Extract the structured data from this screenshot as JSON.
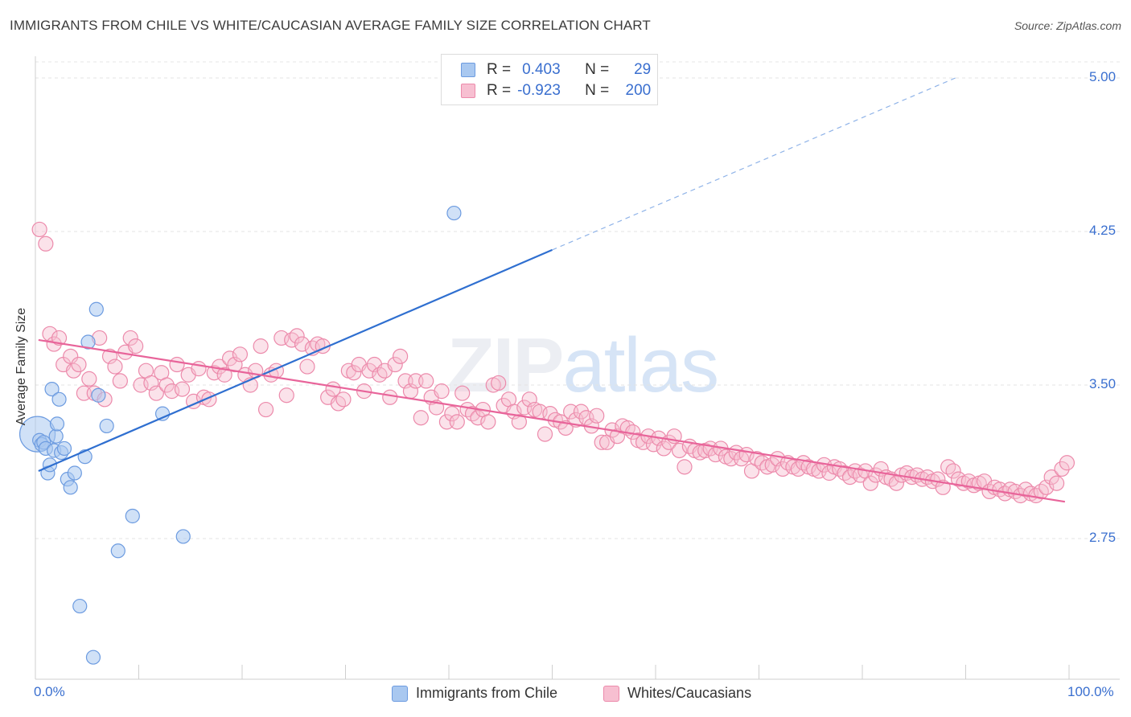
{
  "title": "IMMIGRANTS FROM CHILE VS WHITE/CAUCASIAN AVERAGE FAMILY SIZE CORRELATION CHART",
  "source": "Source: ZipAtlas.com",
  "watermark": {
    "zip": "ZIP",
    "atlas": "atlas"
  },
  "legend_top": {
    "rows": [
      {
        "r_label": "R =",
        "r_value": "0.403",
        "n_label": "N =",
        "n_value": "29",
        "color": "#a9c8f0",
        "border": "#6c9be0"
      },
      {
        "r_label": "R =",
        "r_value": "-0.923",
        "n_label": "N =",
        "n_value": "200",
        "color": "#f7bfd1",
        "border": "#ec8aab"
      }
    ]
  },
  "legend_bottom": [
    {
      "label": "Immigrants from Chile",
      "color": "#a9c8f0",
      "border": "#6c9be0"
    },
    {
      "label": "Whites/Caucasians",
      "color": "#f7bfd1",
      "border": "#ec8aab"
    }
  ],
  "chart_data": {
    "type": "scatter",
    "title": "IMMIGRANTS FROM CHILE VS WHITE/CAUCASIAN AVERAGE FAMILY SIZE CORRELATION CHART",
    "xlabel": "",
    "ylabel": "Average Family Size",
    "xlim": [
      0,
      100
    ],
    "ylim": [
      2.0,
      5.1
    ],
    "x_tick_labels": [
      "0.0%",
      "100.0%"
    ],
    "y_ticks": [
      2.75,
      3.5,
      4.25,
      5.0
    ],
    "y_tick_labels": [
      "2.75",
      "3.50",
      "4.25",
      "5.00"
    ],
    "grid": true,
    "series": [
      {
        "name": "Immigrants from Chile",
        "color": "#a9c8f0",
        "stroke": "#6c9be0",
        "trend_color": "#2f6fd0",
        "trend": {
          "x0": 0.3,
          "y0": 3.08,
          "x1": 50,
          "y1": 4.16,
          "dash_to_x": 89,
          "dash_to_y": 5.0
        },
        "points": [
          [
            0.2,
            3.26
          ],
          [
            0.4,
            3.23
          ],
          [
            0.6,
            3.21
          ],
          [
            0.8,
            3.22
          ],
          [
            1.0,
            3.19
          ],
          [
            1.2,
            3.07
          ],
          [
            1.4,
            3.11
          ],
          [
            1.6,
            3.48
          ],
          [
            1.8,
            3.18
          ],
          [
            2.0,
            3.25
          ],
          [
            2.1,
            3.31
          ],
          [
            2.3,
            3.43
          ],
          [
            2.5,
            3.17
          ],
          [
            2.8,
            3.19
          ],
          [
            3.1,
            3.04
          ],
          [
            3.4,
            3.0
          ],
          [
            3.8,
            3.07
          ],
          [
            4.3,
            2.42
          ],
          [
            4.8,
            3.15
          ],
          [
            5.1,
            3.71
          ],
          [
            5.6,
            2.17
          ],
          [
            5.9,
            3.87
          ],
          [
            6.1,
            3.45
          ],
          [
            6.9,
            3.3
          ],
          [
            8.0,
            2.69
          ],
          [
            9.4,
            2.86
          ],
          [
            12.3,
            3.36
          ],
          [
            14.3,
            2.76
          ],
          [
            40.5,
            4.34
          ]
        ]
      },
      {
        "name": "Whites/Caucasians",
        "color": "#f7bfd1",
        "stroke": "#ec8aab",
        "trend_color": "#e8649a",
        "trend": {
          "x0": 0.3,
          "y0": 3.72,
          "x1": 99.6,
          "y1": 2.93
        },
        "points": [
          [
            0.4,
            4.26
          ],
          [
            1.0,
            4.19
          ],
          [
            1.4,
            3.75
          ],
          [
            1.8,
            3.7
          ],
          [
            2.3,
            3.73
          ],
          [
            2.7,
            3.6
          ],
          [
            3.4,
            3.64
          ],
          [
            3.7,
            3.57
          ],
          [
            4.2,
            3.6
          ],
          [
            4.7,
            3.46
          ],
          [
            5.2,
            3.53
          ],
          [
            5.7,
            3.46
          ],
          [
            6.2,
            3.73
          ],
          [
            6.7,
            3.43
          ],
          [
            7.2,
            3.64
          ],
          [
            7.7,
            3.59
          ],
          [
            8.2,
            3.52
          ],
          [
            8.7,
            3.66
          ],
          [
            9.2,
            3.73
          ],
          [
            9.7,
            3.69
          ],
          [
            10.2,
            3.5
          ],
          [
            10.7,
            3.57
          ],
          [
            11.2,
            3.51
          ],
          [
            11.7,
            3.46
          ],
          [
            12.2,
            3.56
          ],
          [
            12.7,
            3.5
          ],
          [
            13.2,
            3.47
          ],
          [
            13.7,
            3.6
          ],
          [
            14.2,
            3.48
          ],
          [
            14.8,
            3.55
          ],
          [
            15.3,
            3.42
          ],
          [
            15.8,
            3.58
          ],
          [
            16.3,
            3.44
          ],
          [
            16.8,
            3.43
          ],
          [
            17.3,
            3.56
          ],
          [
            17.8,
            3.59
          ],
          [
            18.3,
            3.55
          ],
          [
            18.8,
            3.63
          ],
          [
            19.3,
            3.6
          ],
          [
            19.8,
            3.65
          ],
          [
            20.3,
            3.55
          ],
          [
            20.8,
            3.5
          ],
          [
            21.3,
            3.57
          ],
          [
            21.8,
            3.69
          ],
          [
            22.3,
            3.38
          ],
          [
            22.8,
            3.55
          ],
          [
            23.3,
            3.57
          ],
          [
            23.8,
            3.73
          ],
          [
            24.3,
            3.45
          ],
          [
            24.8,
            3.72
          ],
          [
            25.3,
            3.74
          ],
          [
            25.8,
            3.7
          ],
          [
            26.3,
            3.59
          ],
          [
            26.8,
            3.68
          ],
          [
            27.3,
            3.7
          ],
          [
            27.8,
            3.69
          ],
          [
            28.3,
            3.44
          ],
          [
            28.8,
            3.48
          ],
          [
            29.3,
            3.41
          ],
          [
            29.8,
            3.43
          ],
          [
            30.3,
            3.57
          ],
          [
            30.8,
            3.56
          ],
          [
            31.3,
            3.6
          ],
          [
            31.8,
            3.47
          ],
          [
            32.3,
            3.57
          ],
          [
            32.8,
            3.6
          ],
          [
            33.3,
            3.55
          ],
          [
            33.8,
            3.57
          ],
          [
            34.3,
            3.44
          ],
          [
            34.8,
            3.6
          ],
          [
            35.3,
            3.64
          ],
          [
            35.8,
            3.52
          ],
          [
            36.3,
            3.47
          ],
          [
            36.8,
            3.52
          ],
          [
            37.3,
            3.34
          ],
          [
            37.8,
            3.52
          ],
          [
            38.3,
            3.44
          ],
          [
            38.8,
            3.39
          ],
          [
            39.3,
            3.47
          ],
          [
            39.8,
            3.32
          ],
          [
            40.3,
            3.36
          ],
          [
            40.8,
            3.32
          ],
          [
            41.3,
            3.46
          ],
          [
            41.8,
            3.38
          ],
          [
            42.3,
            3.36
          ],
          [
            42.8,
            3.34
          ],
          [
            43.3,
            3.38
          ],
          [
            43.8,
            3.32
          ],
          [
            44.3,
            3.5
          ],
          [
            44.8,
            3.51
          ],
          [
            45.3,
            3.4
          ],
          [
            45.8,
            3.43
          ],
          [
            46.3,
            3.37
          ],
          [
            46.8,
            3.32
          ],
          [
            47.3,
            3.39
          ],
          [
            47.8,
            3.43
          ],
          [
            48.3,
            3.38
          ],
          [
            48.8,
            3.37
          ],
          [
            49.3,
            3.26
          ],
          [
            49.8,
            3.36
          ],
          [
            50.3,
            3.33
          ],
          [
            50.8,
            3.32
          ],
          [
            51.3,
            3.29
          ],
          [
            51.8,
            3.37
          ],
          [
            52.3,
            3.33
          ],
          [
            52.8,
            3.37
          ],
          [
            53.3,
            3.34
          ],
          [
            53.8,
            3.3
          ],
          [
            54.3,
            3.35
          ],
          [
            54.8,
            3.22
          ],
          [
            55.3,
            3.22
          ],
          [
            55.8,
            3.28
          ],
          [
            56.3,
            3.25
          ],
          [
            56.8,
            3.3
          ],
          [
            57.3,
            3.29
          ],
          [
            57.8,
            3.27
          ],
          [
            58.3,
            3.23
          ],
          [
            58.8,
            3.22
          ],
          [
            59.3,
            3.25
          ],
          [
            59.8,
            3.21
          ],
          [
            60.3,
            3.24
          ],
          [
            60.8,
            3.19
          ],
          [
            61.3,
            3.22
          ],
          [
            61.8,
            3.25
          ],
          [
            62.3,
            3.18
          ],
          [
            62.8,
            3.1
          ],
          [
            63.3,
            3.2
          ],
          [
            63.8,
            3.18
          ],
          [
            64.3,
            3.17
          ],
          [
            64.8,
            3.18
          ],
          [
            65.3,
            3.19
          ],
          [
            65.8,
            3.16
          ],
          [
            66.3,
            3.19
          ],
          [
            66.8,
            3.15
          ],
          [
            67.3,
            3.14
          ],
          [
            67.8,
            3.17
          ],
          [
            68.3,
            3.14
          ],
          [
            68.8,
            3.16
          ],
          [
            69.3,
            3.08
          ],
          [
            69.8,
            3.14
          ],
          [
            70.3,
            3.12
          ],
          [
            70.8,
            3.1
          ],
          [
            71.3,
            3.11
          ],
          [
            71.8,
            3.14
          ],
          [
            72.3,
            3.09
          ],
          [
            72.8,
            3.12
          ],
          [
            73.3,
            3.1
          ],
          [
            73.8,
            3.09
          ],
          [
            74.3,
            3.12
          ],
          [
            74.8,
            3.1
          ],
          [
            75.3,
            3.09
          ],
          [
            75.8,
            3.08
          ],
          [
            76.3,
            3.11
          ],
          [
            76.8,
            3.07
          ],
          [
            77.3,
            3.1
          ],
          [
            77.8,
            3.09
          ],
          [
            78.3,
            3.07
          ],
          [
            78.8,
            3.05
          ],
          [
            79.3,
            3.08
          ],
          [
            79.8,
            3.06
          ],
          [
            80.3,
            3.08
          ],
          [
            80.8,
            3.02
          ],
          [
            81.3,
            3.06
          ],
          [
            81.8,
            3.09
          ],
          [
            82.3,
            3.05
          ],
          [
            82.8,
            3.04
          ],
          [
            83.3,
            3.02
          ],
          [
            83.8,
            3.06
          ],
          [
            84.3,
            3.07
          ],
          [
            84.8,
            3.05
          ],
          [
            85.3,
            3.06
          ],
          [
            85.8,
            3.04
          ],
          [
            86.3,
            3.05
          ],
          [
            86.8,
            3.03
          ],
          [
            87.3,
            3.04
          ],
          [
            87.8,
            3.0
          ],
          [
            88.3,
            3.1
          ],
          [
            88.8,
            3.08
          ],
          [
            89.3,
            3.04
          ],
          [
            89.8,
            3.02
          ],
          [
            90.3,
            3.03
          ],
          [
            90.8,
            3.01
          ],
          [
            91.3,
            3.02
          ],
          [
            91.8,
            3.03
          ],
          [
            92.3,
            2.98
          ],
          [
            92.8,
            3.0
          ],
          [
            93.3,
            2.99
          ],
          [
            93.8,
            2.97
          ],
          [
            94.3,
            2.99
          ],
          [
            94.8,
            2.98
          ],
          [
            95.3,
            2.96
          ],
          [
            95.8,
            2.99
          ],
          [
            96.3,
            2.97
          ],
          [
            96.8,
            2.96
          ],
          [
            97.3,
            2.98
          ],
          [
            97.8,
            3.0
          ],
          [
            98.3,
            3.05
          ],
          [
            98.8,
            3.02
          ],
          [
            99.3,
            3.09
          ],
          [
            99.8,
            3.12
          ]
        ]
      }
    ]
  }
}
